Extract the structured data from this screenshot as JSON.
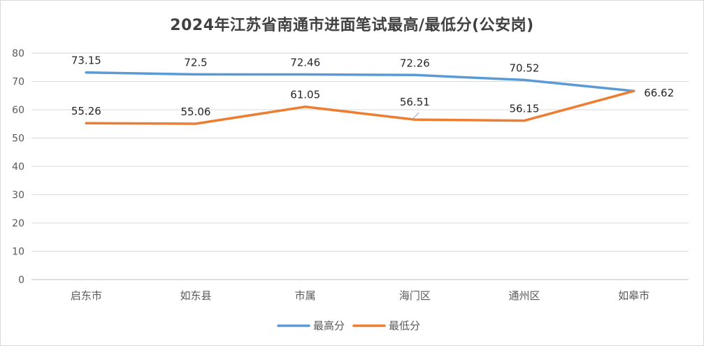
{
  "chart_data": {
    "type": "line",
    "title": "2024年江苏省南通市进面笔试最高/最低分(公安岗)",
    "categories": [
      "启东市",
      "如东县",
      "市属",
      "海门区",
      "通州区",
      "如皋市"
    ],
    "series": [
      {
        "name": "最高分",
        "color": "#5b9bd5",
        "values": [
          73.15,
          72.5,
          72.46,
          72.26,
          70.52,
          66.62
        ],
        "labels": [
          "73.15",
          "72.5",
          "72.46",
          "72.26",
          "70.52",
          ""
        ]
      },
      {
        "name": "最低分",
        "color": "#ed7d31",
        "values": [
          55.26,
          55.06,
          61.05,
          56.51,
          56.15,
          66.62
        ],
        "labels": [
          "55.26",
          "55.06",
          "61.05",
          "56.51",
          "56.15",
          "66.62"
        ]
      }
    ],
    "ylim": [
      0,
      80
    ],
    "yticks": [
      0,
      10,
      20,
      30,
      40,
      50,
      60,
      70,
      80
    ],
    "grid": true,
    "legend": "bottom"
  }
}
